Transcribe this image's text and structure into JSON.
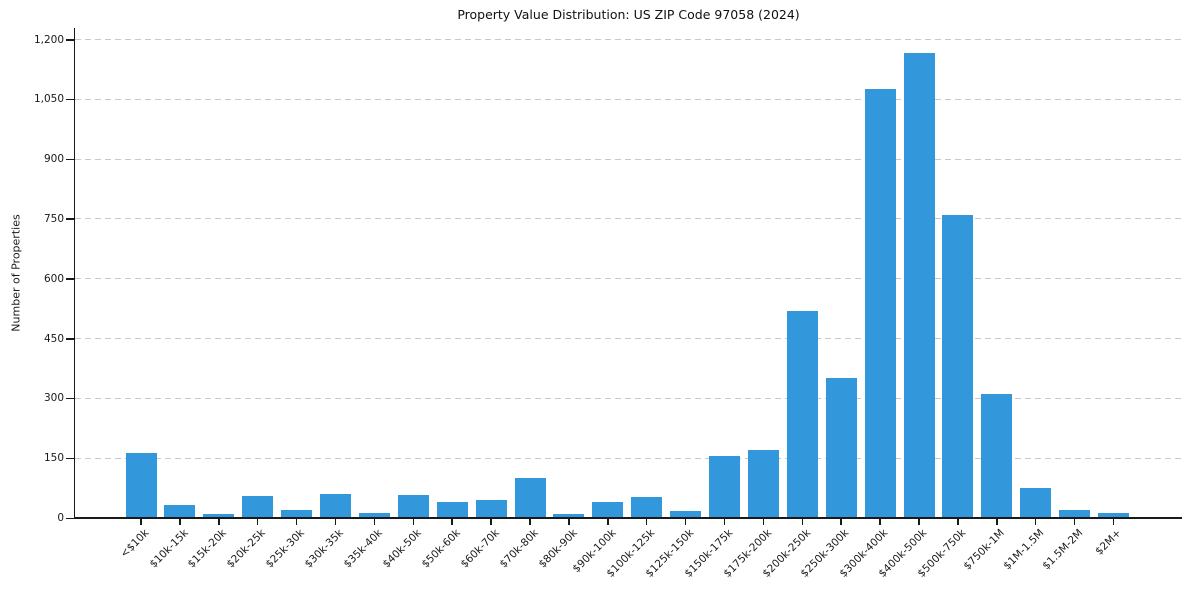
{
  "chart_data": {
    "type": "bar",
    "title": "Property Value Distribution: US ZIP Code 97058 (2024)",
    "xlabel": "",
    "ylabel": "Number of Properties",
    "categories": [
      "<$10k",
      "$10k-15k",
      "$15k-20k",
      "$20k-25k",
      "$25k-30k",
      "$30k-35k",
      "$35k-40k",
      "$40k-50k",
      "$50k-60k",
      "$60k-70k",
      "$70k-80k",
      "$80k-90k",
      "$90k-100k",
      "$100k-125k",
      "$125k-150k",
      "$150k-175k",
      "$175k-200k",
      "$200k-250k",
      "$250k-300k",
      "$300k-400k",
      "$400k-500k",
      "$500k-750k",
      "$750k-1M",
      "$1M-1.5M",
      "$1.5M-2M",
      "$2M+"
    ],
    "values": [
      162,
      32,
      10,
      55,
      20,
      60,
      13,
      58,
      40,
      46,
      100,
      11,
      40,
      52,
      17,
      155,
      170,
      520,
      350,
      1075,
      1165,
      760,
      310,
      75,
      20,
      12
    ],
    "yticks": [
      0,
      150,
      300,
      450,
      600,
      750,
      900,
      1050,
      1200
    ],
    "ytick_labels": [
      "0",
      "150",
      "300",
      "450",
      "600",
      "750",
      "900",
      "1,050",
      "1,200"
    ],
    "ylim": [
      0,
      1230
    ],
    "grid": "horizontal-dashed",
    "legend": "none",
    "colors": {
      "bar": "#3398db",
      "grid": "#c9c9c9",
      "axis": "#1a1a1a",
      "text": "#1a1a1a",
      "background": "#ffffff"
    }
  }
}
